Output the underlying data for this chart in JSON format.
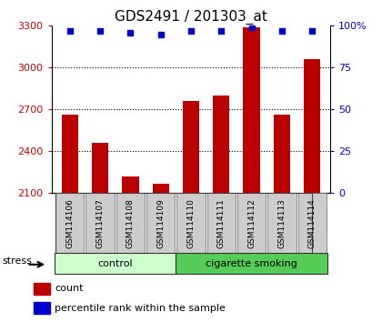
{
  "title": "GDS2491 / 201303_at",
  "samples": [
    "GSM114106",
    "GSM114107",
    "GSM114108",
    "GSM114109",
    "GSM114110",
    "GSM114111",
    "GSM114112",
    "GSM114113",
    "GSM114114"
  ],
  "counts": [
    2660,
    2460,
    2220,
    2165,
    2760,
    2800,
    3290,
    2660,
    3060
  ],
  "percentiles": [
    97,
    97,
    96,
    95,
    97,
    97,
    99,
    97,
    97
  ],
  "ylim_left": [
    2100,
    3300
  ],
  "ylim_right": [
    0,
    100
  ],
  "yticks_left": [
    2100,
    2400,
    2700,
    3000,
    3300
  ],
  "yticks_right": [
    0,
    25,
    50,
    75,
    100
  ],
  "grid_lines": [
    3000,
    2700,
    2400
  ],
  "groups": [
    {
      "label": "control",
      "start": 0,
      "end": 4,
      "color": "#ccffcc"
    },
    {
      "label": "cigarette smoking",
      "start": 4,
      "end": 9,
      "color": "#55cc55"
    }
  ],
  "stress_label": "stress",
  "bar_color": "#bb0000",
  "dot_color": "#0000cc",
  "legend_items": [
    {
      "label": "count",
      "color": "#bb0000"
    },
    {
      "label": "percentile rank within the sample",
      "color": "#0000cc"
    }
  ],
  "tick_label_color_left": "#cc0000",
  "tick_label_color_right": "#0000cc",
  "box_color": "#cccccc",
  "title_fontsize": 11
}
